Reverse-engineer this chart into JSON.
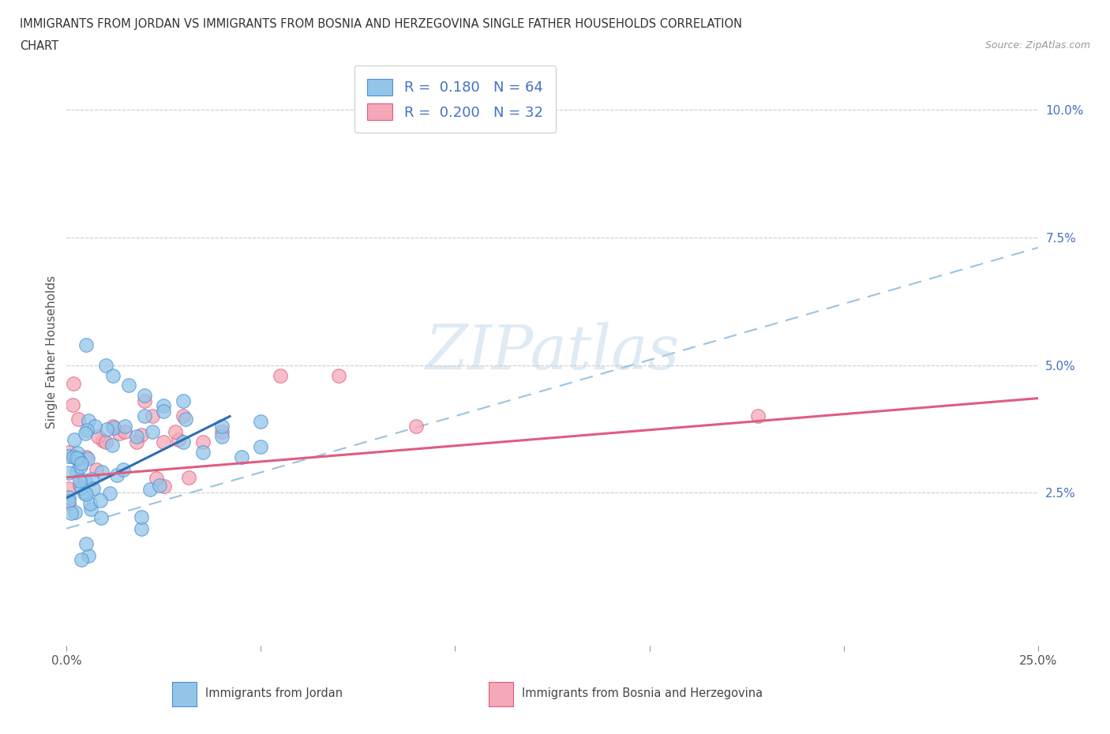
{
  "title_line1": "IMMIGRANTS FROM JORDAN VS IMMIGRANTS FROM BOSNIA AND HERZEGOVINA SINGLE FATHER HOUSEHOLDS CORRELATION",
  "title_line2": "CHART",
  "source": "Source: ZipAtlas.com",
  "ylabel": "Single Father Households",
  "jordan_color": "#92C5E8",
  "jordan_edge_color": "#4A90D9",
  "bosnia_color": "#F4A8B8",
  "bosnia_edge_color": "#E05C80",
  "jordan_line_color": "#2E6DB4",
  "jordan_dash_color": "#9BC3E0",
  "bosnia_line_color": "#E05C80",
  "jordan_R": 0.18,
  "jordan_N": 64,
  "bosnia_R": 0.2,
  "bosnia_N": 32,
  "watermark": "ZIPatlas",
  "xlim": [
    0.0,
    0.25
  ],
  "ylim": [
    -0.005,
    0.11
  ],
  "yticks": [
    0.025,
    0.05,
    0.075,
    0.1
  ],
  "ytick_labels": [
    "2.5%",
    "5.0%",
    "7.5%",
    "10.0%"
  ],
  "legend_color": "#4472C4",
  "grid_color": "#CCCCCC"
}
